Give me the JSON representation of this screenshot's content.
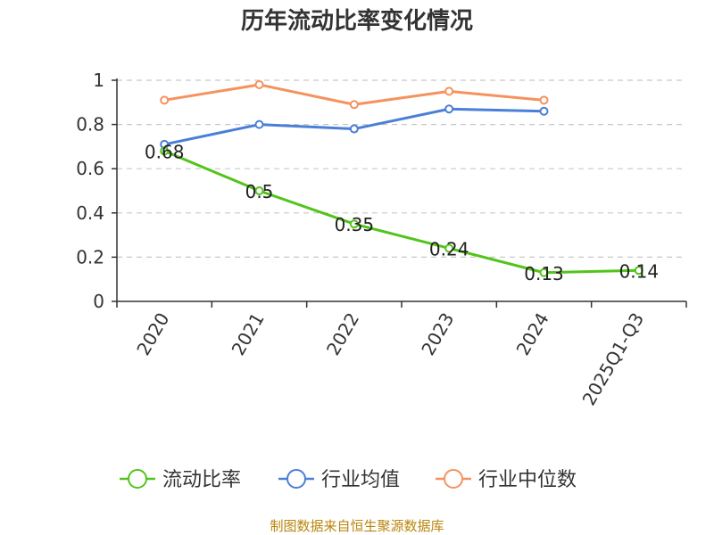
{
  "chart_data": {
    "type": "line",
    "title": "历年流动比率变化情况",
    "categories": [
      "2020",
      "2021",
      "2022",
      "2023",
      "2024",
      "2025Q1-Q3"
    ],
    "ylim": [
      0,
      1
    ],
    "yticks": [
      "0",
      "0.2",
      "0.4",
      "0.6",
      "0.8",
      "1"
    ],
    "grid": true,
    "legend_position": "bottom",
    "series": [
      {
        "name": "流动比率",
        "color": "#52c41a",
        "values": [
          0.68,
          0.5,
          0.35,
          0.24,
          0.13,
          0.14
        ],
        "labels": [
          "0.68",
          "0.5",
          "0.35",
          "0.24",
          "0.13",
          "0.14"
        ]
      },
      {
        "name": "行业均值",
        "color": "#4a7fd8",
        "values": [
          0.71,
          0.8,
          0.78,
          0.87,
          0.86,
          null
        ]
      },
      {
        "name": "行业中位数",
        "color": "#f5925e",
        "values": [
          0.91,
          0.98,
          0.89,
          0.95,
          0.91,
          null
        ]
      }
    ]
  },
  "footer": {
    "source": "制图数据来自恒生聚源数据库"
  }
}
